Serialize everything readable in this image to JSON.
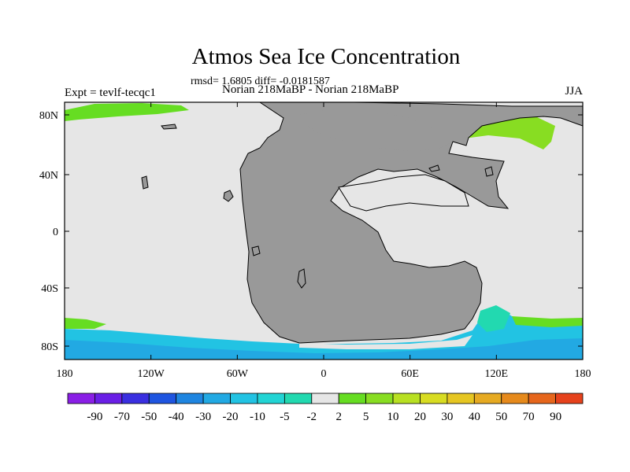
{
  "title": "Atmos Sea Ice Concentration",
  "stats": "rmsd= 1.6805 diff= -0.0181587",
  "expt_label": "Expt = tevlf-tecqc1",
  "subtitle": "Norian 218MaBP - Norian 218MaBP",
  "season": "JJA",
  "colors": {
    "land": "#999999",
    "ocean_zero": "#e6e6e6",
    "coast": "#000000"
  },
  "map": {
    "lon_ticks": [
      "180",
      "120W",
      "60W",
      "0",
      "60E",
      "120E",
      "180"
    ],
    "lat_ticks": [
      "80N",
      "40N",
      "0",
      "40S",
      "80S"
    ]
  },
  "colorbar": {
    "colors": [
      "#8a1fe6",
      "#6a1fe6",
      "#3a2fe0",
      "#1f55e0",
      "#1f85e0",
      "#22a9e3",
      "#22c3e3",
      "#22d4d4",
      "#22d9b0",
      "#e6e6e6",
      "#66dd22",
      "#88dd22",
      "#b8e022",
      "#d8dc22",
      "#e6c622",
      "#e6aa22",
      "#e68a1c",
      "#e6661c",
      "#e6421c"
    ],
    "labels": [
      "-90",
      "-70",
      "-50",
      "-40",
      "-30",
      "-20",
      "-10",
      "-5",
      "-2",
      "2",
      "5",
      "10",
      "20",
      "30",
      "40",
      "50",
      "70",
      "90"
    ]
  }
}
